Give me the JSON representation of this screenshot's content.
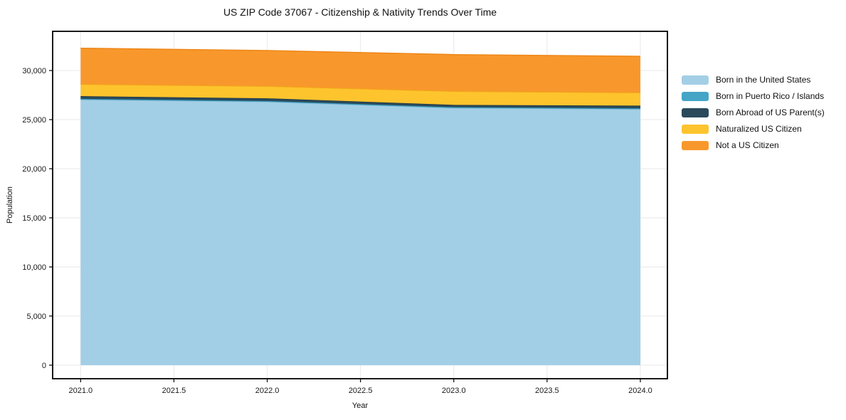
{
  "page": {
    "background": "#ffffff"
  },
  "chart_data": {
    "type": "area",
    "stacked": true,
    "title": "US ZIP Code 37067 - Citizenship & Nativity Trends Over Time",
    "xlabel": "Year",
    "ylabel": "Population",
    "x": [
      2021,
      2022,
      2023,
      2024
    ],
    "series": [
      {
        "name": "Born in the United States",
        "color": "#a3cfe6",
        "edge": "#8abdd8",
        "values": [
          27030,
          26810,
          26180,
          26060
        ]
      },
      {
        "name": "Born in Puerto Rico / Islands",
        "color": "#44a5c7",
        "edge": "#3492b4",
        "values": [
          90,
          90,
          90,
          90
        ]
      },
      {
        "name": "Born Abroad of US Parent(s)",
        "color": "#2a4a5c",
        "edge": "#1d3644",
        "values": [
          270,
          270,
          230,
          275
        ]
      },
      {
        "name": "Naturalized US Citizen",
        "color": "#fdc42e",
        "edge": "#f0ab10",
        "values": [
          1210,
          1230,
          1380,
          1320
        ]
      },
      {
        "name": "Not a US Citizen",
        "color": "#f8982c",
        "edge": "#ee8617",
        "values": [
          3670,
          3630,
          3740,
          3700
        ]
      }
    ],
    "totals": [
      32270,
      32030,
      31620,
      31445
    ],
    "xlim": [
      2020.85,
      2024.145
    ],
    "ylim": [
      -1380,
      33990
    ],
    "xticks": {
      "values": [
        2021.0,
        2021.5,
        2022.0,
        2022.5,
        2023.0,
        2023.5,
        2024.0
      ],
      "labels": [
        "2021.0",
        "2021.5",
        "2022.0",
        "2022.5",
        "2023.0",
        "2023.5",
        "2024.0"
      ]
    },
    "yticks": {
      "values": [
        0,
        5000,
        10000,
        15000,
        20000,
        25000,
        30000
      ],
      "labels": [
        "0",
        "5,000",
        "10,000",
        "15,000",
        "20,000",
        "25,000",
        "30,000"
      ]
    },
    "grid": true,
    "legend_position": "right of plot"
  }
}
